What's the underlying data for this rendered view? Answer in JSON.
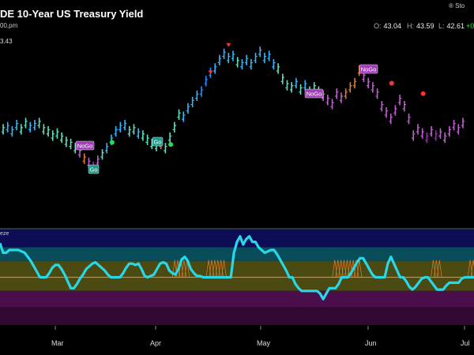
{
  "header": {
    "title": "DE 10-Year US Treasury Yield",
    "interval_fragment": "00,pm",
    "y_readout": "3.43",
    "brand": "® Sto",
    "open_key": "O:",
    "open": "43.04",
    "high_key": "H:",
    "high": "43.59",
    "low_key": "L:",
    "low": "42.61",
    "change": "+0"
  },
  "lower_panel": {
    "label": "eze"
  },
  "colors": {
    "go_strong": "#1f8fff",
    "go": "#2fb8ff",
    "go_weak": "#5fe0c0",
    "nogo_weak": "#e07a30",
    "nogo": "#c060d0",
    "nogo_strong": "#9a2cb0",
    "oscillator": "#29d8e8",
    "zero_line": "#e08030",
    "signal_up": "#22dd55",
    "signal_down": "#ff3030"
  },
  "chart_data": {
    "type": "bar",
    "x_ticks": [
      "Mar",
      "Apr",
      "May",
      "Jun",
      "Jul"
    ],
    "annotations": [
      {
        "label": "NoGo",
        "kind": "nogo"
      },
      {
        "label": "Go",
        "kind": "go"
      },
      {
        "label": "Go",
        "kind": "go"
      },
      {
        "label": "NoGo",
        "kind": "nogo"
      },
      {
        "label": "NoGo",
        "kind": "nogo"
      }
    ],
    "price_bars": [
      [
        4.13,
        "go_weak"
      ],
      [
        4.14,
        "go"
      ],
      [
        4.12,
        "go"
      ],
      [
        4.15,
        "go"
      ],
      [
        4.13,
        "go_weak"
      ],
      [
        4.16,
        "go_weak"
      ],
      [
        4.14,
        "go"
      ],
      [
        4.15,
        "go"
      ],
      [
        4.16,
        "go_weak"
      ],
      [
        4.13,
        "go_weak"
      ],
      [
        4.12,
        "go_weak"
      ],
      [
        4.1,
        "go_weak"
      ],
      [
        4.11,
        "go_weak"
      ],
      [
        4.09,
        "go_weak"
      ],
      [
        4.07,
        "go_weak"
      ],
      [
        4.06,
        "go_weak"
      ],
      [
        4.04,
        "go_weak"
      ],
      [
        4.02,
        "nogo"
      ],
      [
        3.99,
        "nogo_weak"
      ],
      [
        3.97,
        "nogo"
      ],
      [
        3.95,
        "nogo_strong"
      ],
      [
        3.98,
        "nogo"
      ],
      [
        4.01,
        "go_weak"
      ],
      [
        4.04,
        "go"
      ],
      [
        4.08,
        "go"
      ],
      [
        4.12,
        "go"
      ],
      [
        4.14,
        "go"
      ],
      [
        4.15,
        "go"
      ],
      [
        4.12,
        "go_weak"
      ],
      [
        4.13,
        "go_weak"
      ],
      [
        4.11,
        "go"
      ],
      [
        4.1,
        "go_weak"
      ],
      [
        4.08,
        "go_weak"
      ],
      [
        4.06,
        "go_weak"
      ],
      [
        4.05,
        "go_weak"
      ],
      [
        4.06,
        "nogo_weak"
      ],
      [
        4.04,
        "go_weak"
      ],
      [
        4.09,
        "go_weak"
      ],
      [
        4.14,
        "go_weak"
      ],
      [
        4.2,
        "go_weak"
      ],
      [
        4.19,
        "go"
      ],
      [
        4.23,
        "go"
      ],
      [
        4.26,
        "go"
      ],
      [
        4.29,
        "go"
      ],
      [
        4.31,
        "go_strong"
      ],
      [
        4.36,
        "go_strong"
      ],
      [
        4.4,
        "go_strong"
      ],
      [
        4.42,
        "go"
      ],
      [
        4.46,
        "go"
      ],
      [
        4.49,
        "go"
      ],
      [
        4.47,
        "go"
      ],
      [
        4.48,
        "go"
      ],
      [
        4.45,
        "go_weak"
      ],
      [
        4.44,
        "go"
      ],
      [
        4.46,
        "go"
      ],
      [
        4.44,
        "go"
      ],
      [
        4.47,
        "go"
      ],
      [
        4.5,
        "go"
      ],
      [
        4.47,
        "go"
      ],
      [
        4.48,
        "go"
      ],
      [
        4.44,
        "go"
      ],
      [
        4.42,
        "go_weak"
      ],
      [
        4.37,
        "go_weak"
      ],
      [
        4.34,
        "go_weak"
      ],
      [
        4.33,
        "go_weak"
      ],
      [
        4.35,
        "go"
      ],
      [
        4.32,
        "go_weak"
      ],
      [
        4.34,
        "go"
      ],
      [
        4.31,
        "go_weak"
      ],
      [
        4.33,
        "go_weak"
      ],
      [
        4.31,
        "go_weak"
      ],
      [
        4.29,
        "nogo"
      ],
      [
        4.27,
        "nogo"
      ],
      [
        4.25,
        "nogo"
      ],
      [
        4.3,
        "nogo"
      ],
      [
        4.28,
        "nogo"
      ],
      [
        4.3,
        "nogo_weak"
      ],
      [
        4.33,
        "nogo_weak"
      ],
      [
        4.35,
        "nogo_weak"
      ],
      [
        4.41,
        "nogo_weak"
      ],
      [
        4.38,
        "nogo"
      ],
      [
        4.35,
        "nogo"
      ],
      [
        4.33,
        "nogo"
      ],
      [
        4.3,
        "nogo"
      ],
      [
        4.24,
        "nogo"
      ],
      [
        4.21,
        "nogo"
      ],
      [
        4.18,
        "nogo"
      ],
      [
        4.22,
        "nogo"
      ],
      [
        4.27,
        "nogo"
      ],
      [
        4.24,
        "nogo"
      ],
      [
        4.18,
        "nogo"
      ],
      [
        4.1,
        "nogo"
      ],
      [
        4.13,
        "nogo"
      ],
      [
        4.11,
        "nogo"
      ],
      [
        4.09,
        "nogo_strong"
      ],
      [
        4.12,
        "nogo"
      ],
      [
        4.1,
        "nogo_strong"
      ],
      [
        4.11,
        "nogo"
      ],
      [
        4.09,
        "nogo"
      ],
      [
        4.12,
        "nogo"
      ],
      [
        4.15,
        "nogo"
      ],
      [
        4.13,
        "nogo"
      ],
      [
        4.16,
        "nogo"
      ]
    ],
    "oscillator": [
      2.5,
      1.8,
      1.8,
      2.0,
      2.0,
      2.0,
      2.0,
      1.9,
      1.8,
      1.5,
      1.2,
      0.8,
      0.4,
      0.0,
      0.0,
      0.0,
      0.3,
      0.7,
      0.9,
      0.9,
      0.6,
      0.2,
      -0.3,
      -0.8,
      -0.8,
      -0.5,
      -0.1,
      0.2,
      0.6,
      0.8,
      1.0,
      1.1,
      0.9,
      0.7,
      0.5,
      0.2,
      0.0,
      0.0,
      0.0,
      0.0,
      0.3,
      0.7,
      1.0,
      1.0,
      0.9,
      1.0,
      0.6,
      0.1,
      0.0,
      0.1,
      0.2,
      0.6,
      1.0,
      1.1,
      1.0,
      0.5,
      0.3,
      0.2,
      0.6,
      1.3,
      1.5,
      1.2,
      0.6,
      0.3,
      0.1,
      0.1,
      0.0,
      0.0,
      0.0,
      0.0,
      0.0,
      0.0,
      0.0,
      0.0,
      0.0,
      0.0,
      1.8,
      2.6,
      3.0,
      2.4,
      2.8,
      3.0,
      2.6,
      2.6,
      2.2,
      2.0,
      1.8,
      1.9,
      2.0,
      2.0,
      1.7,
      1.3,
      0.9,
      0.5,
      0.0,
      0.0,
      -0.5,
      -0.8,
      -1.0,
      -1.0,
      -1.0,
      -1.0,
      -1.0,
      -1.0,
      -1.2,
      -1.6,
      -1.2,
      -0.8,
      -0.8,
      -0.8,
      -0.5,
      0.0,
      0.0,
      0.0,
      0.3,
      0.7,
      1.1,
      1.4,
      1.4,
      1.0,
      0.6,
      0.2,
      0.0,
      0.0,
      0.0,
      0.0,
      1.0,
      1.5,
      1.0,
      0.5,
      0.0,
      0.0,
      -0.3,
      -0.7,
      -0.9,
      -0.7,
      -0.4,
      -0.1,
      0.0,
      0.0,
      -0.3,
      -0.6,
      -0.9,
      -0.9,
      -0.9,
      -0.6,
      -0.4,
      -0.4,
      -0.4,
      -0.4,
      -0.1,
      0.0,
      0.0,
      0.0,
      0.0
    ]
  }
}
